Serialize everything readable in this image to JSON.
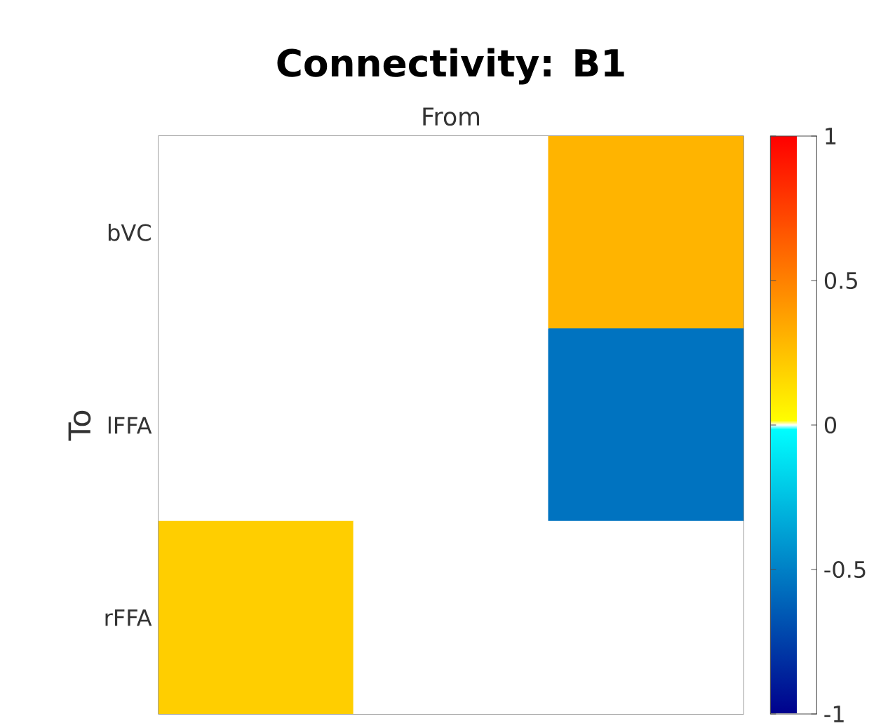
{
  "chart_data": {
    "type": "heatmap",
    "title": "Connectivity: B1",
    "xlabel": "From",
    "ylabel": "To",
    "categories": [
      null,
      null,
      null
    ],
    "y_categories": [
      "bVC",
      "lFFA",
      "rFFA"
    ],
    "cells": [
      [
        0,
        0,
        0.3
      ],
      [
        0,
        0,
        -0.55
      ],
      [
        0.2,
        0,
        0
      ]
    ],
    "clim": [
      -1,
      1
    ],
    "cticks": [
      -1,
      -0.5,
      0,
      0.5,
      1
    ]
  }
}
